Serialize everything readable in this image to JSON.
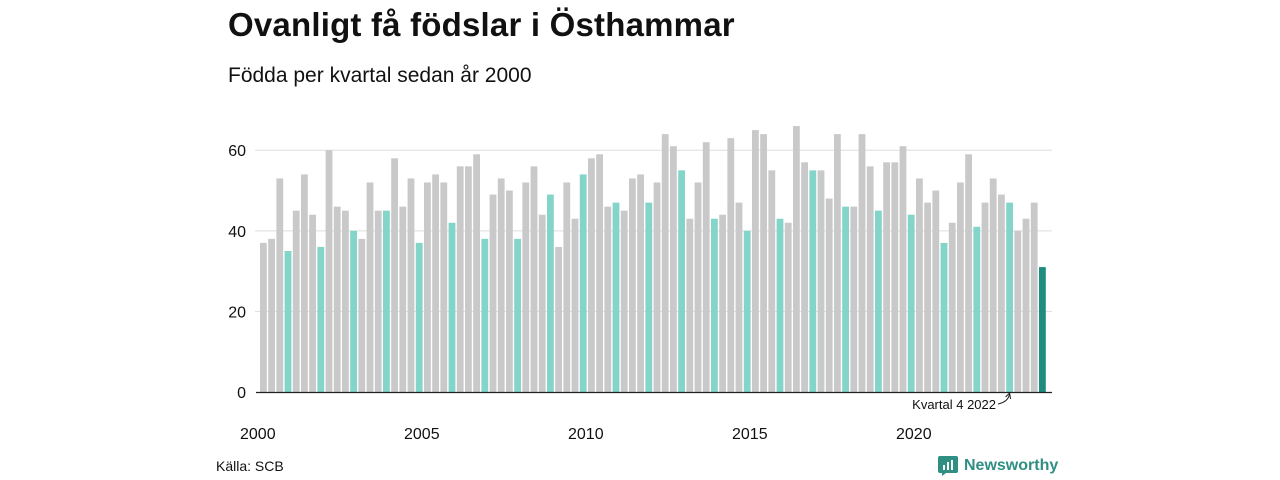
{
  "header": {
    "title": "Ovanligt få födslar i Östhammar",
    "subtitle": "Födda per kvartal sedan år 2000"
  },
  "footer": {
    "source": "Källa: SCB",
    "brand": "Newsworthy"
  },
  "colors": {
    "default_bar": "#c9c9c9",
    "highlight_quarter_bar": "#84d5c9",
    "latest_bar": "#1f8c80",
    "grid": "#dddddd",
    "axis": "#222222",
    "brand": "#2f8f83"
  },
  "chart_data": {
    "type": "bar",
    "x_axis": {
      "type": "quarter",
      "start": "2000 Q1",
      "end": "2023 Q4",
      "tick_labels": [
        "2000",
        "2005",
        "2010",
        "2015",
        "2020"
      ]
    },
    "y_axis": {
      "ticks": [
        0,
        20,
        40,
        60
      ],
      "ylim": [
        0,
        68
      ]
    },
    "grid": "horizontal",
    "highlight": "Q4 bars in turquoise, latest bar in dark teal",
    "annotation": "Kvartal 4 2022",
    "values": [
      37,
      38,
      53,
      35,
      45,
      54,
      44,
      36,
      60,
      46,
      45,
      40,
      38,
      52,
      45,
      45,
      58,
      46,
      53,
      37,
      52,
      54,
      52,
      42,
      56,
      56,
      59,
      38,
      49,
      53,
      50,
      38,
      52,
      56,
      44,
      49,
      36,
      52,
      43,
      54,
      58,
      59,
      46,
      47,
      45,
      53,
      54,
      47,
      52,
      64,
      61,
      55,
      43,
      52,
      62,
      43,
      44,
      63,
      47,
      40,
      65,
      64,
      55,
      43,
      42,
      66,
      57,
      55,
      55,
      48,
      64,
      46,
      46,
      64,
      56,
      45,
      57,
      57,
      61,
      44,
      53,
      47,
      50,
      37,
      42,
      52,
      59,
      41,
      47,
      53,
      49,
      47,
      40,
      43,
      47,
      31
    ]
  }
}
